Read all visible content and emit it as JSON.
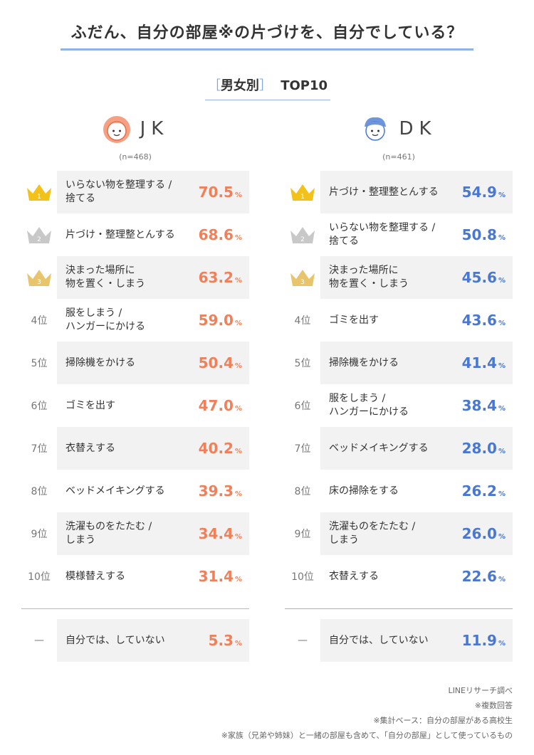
{
  "title": "ふだん、自分の部屋※の片づけを、自分でしている？",
  "subtitle": {
    "open": "［",
    "text": "男女別",
    "close": "］",
    "top": "TOP10"
  },
  "colors": {
    "jk": "#f0805a",
    "dk": "#4a78d0",
    "gold": "#f2c21b",
    "silver": "#c8c8c8",
    "bronze": "#e8c56d"
  },
  "columns": [
    {
      "id": "jk",
      "heading": "JK",
      "n": "(n=468)"
    },
    {
      "id": "dk",
      "heading": "DK",
      "n": "(n=461)"
    }
  ],
  "rank_labels": [
    "1",
    "2",
    "3",
    "4位",
    "5位",
    "6位",
    "7位",
    "8位",
    "9位",
    "10位",
    "—"
  ],
  "chart_data": [
    {
      "type": "table",
      "group": "JK",
      "categories": [
        "いらない物を整理する /\n捨てる",
        "片づけ・整理整とんする",
        "決まった場所に\n物を置く・しまう",
        "服をしまう /\nハンガーにかける",
        "掃除機をかける",
        "ゴミを出す",
        "衣替えする",
        "ベッドメイキングする",
        "洗濯ものをたたむ /\nしまう",
        "模様替えする",
        "自分では、していない"
      ],
      "values": [
        70.5,
        68.6,
        63.2,
        59.0,
        50.4,
        47.0,
        40.2,
        39.3,
        34.4,
        31.4,
        5.3
      ],
      "unit": "%"
    },
    {
      "type": "table",
      "group": "DK",
      "categories": [
        "片づけ・整理整とんする",
        "いらない物を整理する /\n捨てる",
        "決まった場所に\n物を置く・しまう",
        "ゴミを出す",
        "掃除機をかける",
        "服をしまう /\nハンガーにかける",
        "ベッドメイキングする",
        "床の掃除をする",
        "洗濯ものをたたむ /\nしまう",
        "衣替えする",
        "自分では、していない"
      ],
      "values": [
        54.9,
        50.8,
        45.6,
        43.6,
        41.4,
        38.4,
        28.0,
        26.2,
        26.0,
        22.6,
        11.9
      ],
      "unit": "%"
    }
  ],
  "notes": [
    "LINEリサーチ調べ",
    "※複数回答",
    "※集計ベース：自分の部屋がある高校生",
    "※家族（兄弟や姉妹）と一緒の部屋も含めて、「自分の部屋」として使っているもの"
  ]
}
